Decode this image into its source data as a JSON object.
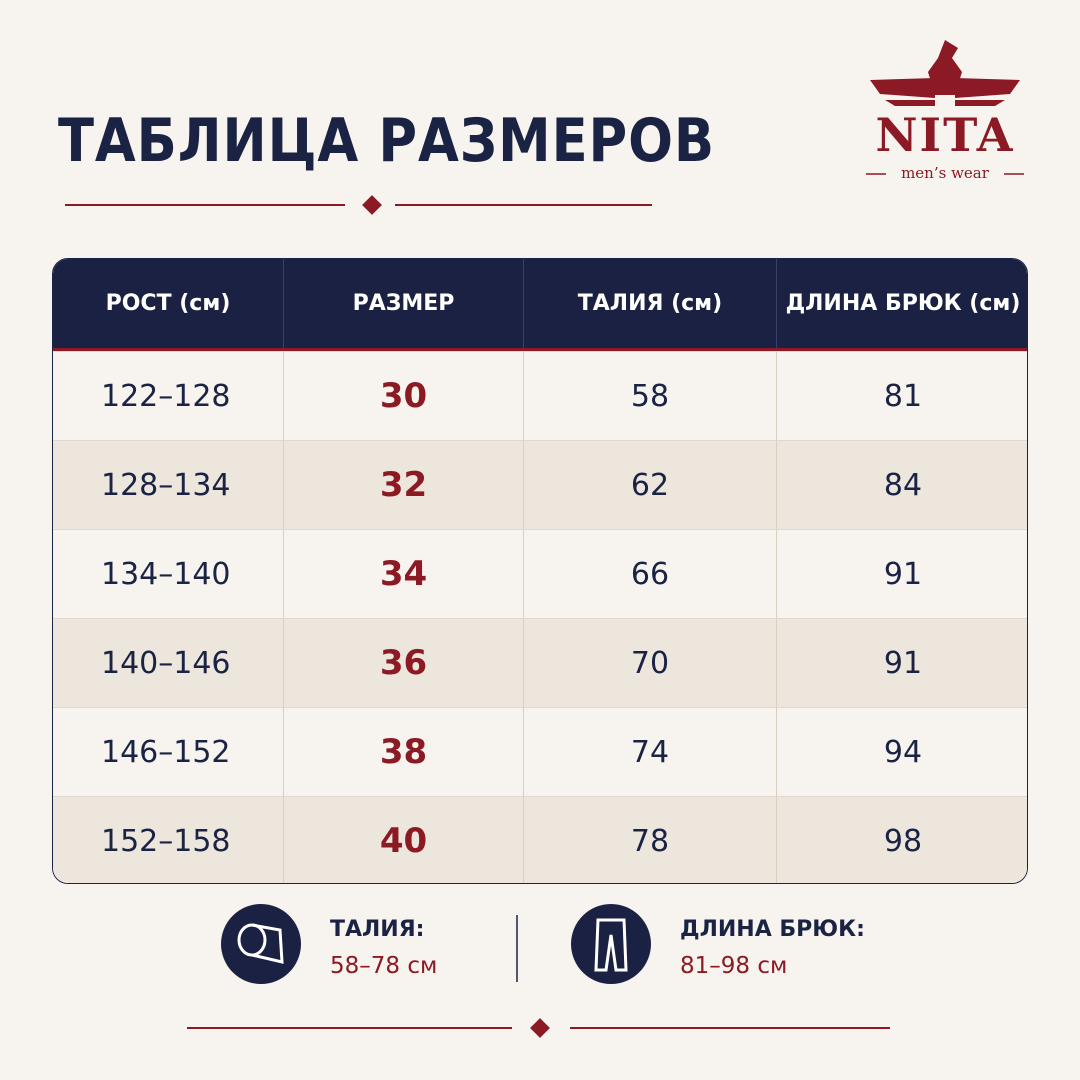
{
  "header": {
    "title": "ТАБЛИЦА РАЗМЕРОВ"
  },
  "logo": {
    "brand": "NITA",
    "tagline": "men’s wear"
  },
  "table": {
    "columns": [
      "РОСТ (см)",
      "РАЗМЕР",
      "ТАЛИЯ (см)",
      "ДЛИНА БРЮК (см)"
    ],
    "rows": [
      [
        "122–128",
        "30",
        "58",
        "81"
      ],
      [
        "128–134",
        "32",
        "62",
        "84"
      ],
      [
        "134–140",
        "34",
        "66",
        "91"
      ],
      [
        "140–146",
        "36",
        "70",
        "91"
      ],
      [
        "146–152",
        "38",
        "74",
        "94"
      ],
      [
        "152–158",
        "40",
        "78",
        "98"
      ]
    ]
  },
  "summary": [
    {
      "label": "ТАЛИЯ:",
      "range": "58–78 см"
    },
    {
      "label": "ДЛИНА БРЮК:",
      "range": "81–98 см"
    }
  ]
}
